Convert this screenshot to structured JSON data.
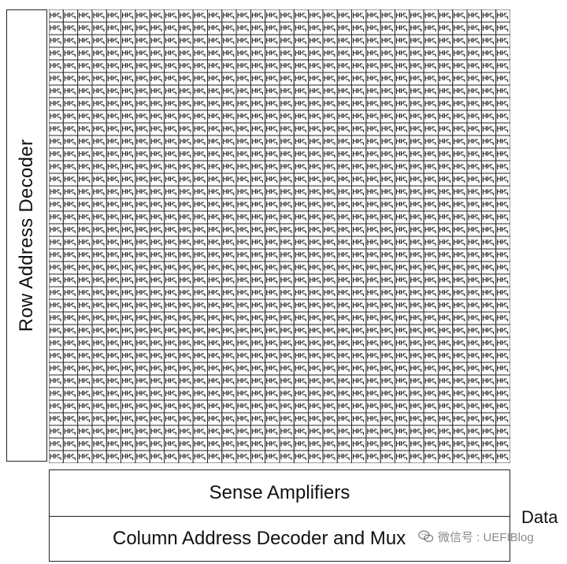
{
  "row_decoder": {
    "label": "Row Address Decoder"
  },
  "sense_amplifiers": {
    "label": "Sense Amplifiers"
  },
  "column_decoder": {
    "label": "Column Address Decoder and Mux"
  },
  "data_output": {
    "label": "Data"
  },
  "watermark": {
    "text": "微信号 : UEFIBlog",
    "icon": "wechat-icon"
  },
  "cell_array": {
    "rows": 36,
    "columns": 32,
    "cell_icon": "memory-cell-icon"
  },
  "colors": {
    "stroke": "#222222",
    "background": "#ffffff"
  }
}
